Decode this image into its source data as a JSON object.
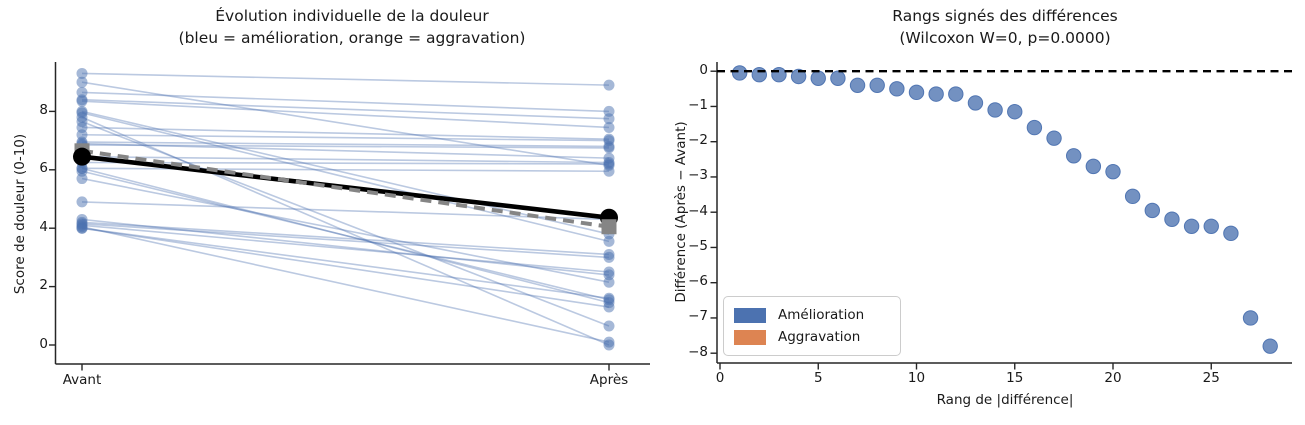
{
  "figure": {
    "background": "#ffffff",
    "text_color": "#1a1a1a"
  },
  "left_plot": {
    "title_line1": "Évolution individuelle de la douleur",
    "title_line2": "(bleu = amélioration, orange = aggravation)",
    "ylabel": "Score de douleur (0-10)",
    "xtick_labels": [
      "Avant",
      "Après"
    ],
    "ytick_labels": [
      "0",
      "2",
      "4",
      "6",
      "8"
    ],
    "ytick_values": [
      0,
      2,
      4,
      6,
      8
    ]
  },
  "right_plot": {
    "title_line1": "Rangs signés des différences",
    "title_line2": "(Wilcoxon W=0, p=0.0000)",
    "ylabel": "Différence (Après − Avant)",
    "xlabel": "Rang de |différence|",
    "ytick_labels": [
      "0",
      "−1",
      "−2",
      "−3",
      "−4",
      "−5",
      "−6",
      "−7",
      "−8"
    ],
    "ytick_values": [
      0,
      -1,
      -2,
      -3,
      -4,
      -5,
      -6,
      -7,
      -8
    ],
    "xtick_labels": [
      "0",
      "5",
      "10",
      "15",
      "20",
      "25"
    ],
    "xtick_values": [
      0,
      5,
      10,
      15,
      20,
      25
    ],
    "legend": {
      "items": [
        {
          "label": "Amélioration",
          "color": "#4C72B0"
        },
        {
          "label": "Aggravation",
          "color": "#DD8452"
        }
      ]
    }
  },
  "chart_data": [
    {
      "type": "line",
      "title": "Évolution individuelle de la douleur (bleu = amélioration, orange = aggravation)",
      "categories": [
        "Avant",
        "Après"
      ],
      "ylabel": "Score de douleur (0-10)",
      "ylim": [
        -0.65,
        9.7
      ],
      "yticks": [
        0,
        2,
        4,
        6,
        8
      ],
      "n_patients": 28,
      "pairs_avant_apres": [
        [
          6.25,
          6.2
        ],
        [
          6.85,
          6.75
        ],
        [
          6.05,
          5.95
        ],
        [
          6.95,
          6.8
        ],
        [
          7.2,
          7.0
        ],
        [
          6.45,
          6.25
        ],
        [
          9.3,
          8.9
        ],
        [
          7.45,
          7.05
        ],
        [
          6.9,
          6.4
        ],
        [
          4.9,
          4.3
        ],
        [
          8.65,
          8.0
        ],
        [
          8.4,
          7.75
        ],
        [
          8.35,
          7.45
        ],
        [
          4.2,
          3.1
        ],
        [
          4.15,
          3.0
        ],
        [
          4.1,
          2.5
        ],
        [
          4.3,
          2.4
        ],
        [
          4.0,
          1.6
        ],
        [
          4.0,
          1.3
        ],
        [
          9.0,
          6.15
        ],
        [
          5.7,
          2.15
        ],
        [
          4.05,
          0.1
        ],
        [
          8.0,
          3.8
        ],
        [
          7.95,
          3.55
        ],
        [
          5.95,
          1.55
        ],
        [
          6.05,
          1.45
        ],
        [
          7.65,
          0.65
        ],
        [
          7.8,
          0.0
        ]
      ],
      "mean_avant_apres": [
        6.45,
        4.36
      ],
      "median_avant_apres": [
        6.65,
        4.05
      ],
      "pair_line_color": "#4C72B0",
      "pair_line_alpha": 0.38,
      "mean_line_color": "#000000",
      "median_line_color": "#858585",
      "legend_position": "none",
      "grid": false
    },
    {
      "type": "scatter",
      "title": "Rangs signés des différences (Wilcoxon W=0, p=0.0000)",
      "xlabel": "Rang de |différence|",
      "ylabel": "Différence (Après − Avant)",
      "x": [
        1,
        2,
        3,
        4,
        5,
        6,
        7,
        8,
        9,
        10,
        11,
        12,
        13,
        14,
        15,
        16,
        17,
        18,
        19,
        20,
        21,
        22,
        23,
        24,
        25,
        26,
        27,
        28
      ],
      "y": [
        -0.05,
        -0.1,
        -0.1,
        -0.15,
        -0.2,
        -0.2,
        -0.4,
        -0.4,
        -0.5,
        -0.6,
        -0.65,
        -0.65,
        -0.9,
        -1.1,
        -1.15,
        -1.6,
        -1.9,
        -2.4,
        -2.7,
        -2.85,
        -3.55,
        -3.95,
        -4.2,
        -4.4,
        -4.4,
        -4.6,
        -7.0,
        -7.8
      ],
      "xlim": [
        -0.5,
        29
      ],
      "ylim": [
        -8.3,
        0.3
      ],
      "xticks": [
        0,
        5,
        10,
        15,
        20,
        25
      ],
      "yticks": [
        0,
        -1,
        -2,
        -3,
        -4,
        -5,
        -6,
        -7,
        -8
      ],
      "zero_line_y": 0,
      "point_color": "#4C72B0",
      "point_alpha": 0.78,
      "wilcoxon_W": "0",
      "wilcoxon_p": "0.0000",
      "legend_position": "lower left",
      "grid": false
    }
  ]
}
